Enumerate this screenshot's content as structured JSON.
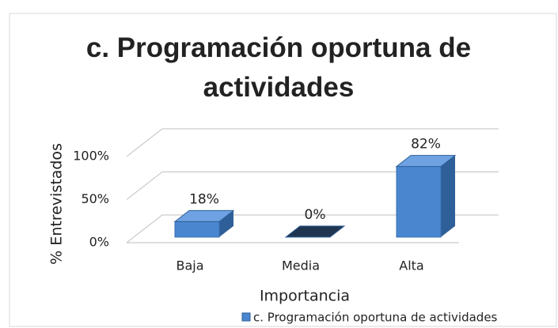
{
  "chart_data": {
    "type": "bar3d",
    "title": "c. Programación oportuna de actividades",
    "x_label": "Importancia",
    "y_label": "% Entrevistados",
    "categories": [
      "Baja",
      "Media",
      "Alta"
    ],
    "series": [
      {
        "name": "c. Programación oportuna de actividades",
        "color": "#4a86d0",
        "values": [
          18,
          0,
          82
        ],
        "value_labels": [
          "18%",
          "0%",
          "82%"
        ]
      }
    ],
    "ylim": [
      0,
      100
    ],
    "yticks": [
      {
        "value": 0,
        "label": "0%"
      },
      {
        "value": 50,
        "label": "50%"
      },
      {
        "value": 100,
        "label": "100%"
      }
    ],
    "grid": true,
    "legend": "bottom"
  }
}
